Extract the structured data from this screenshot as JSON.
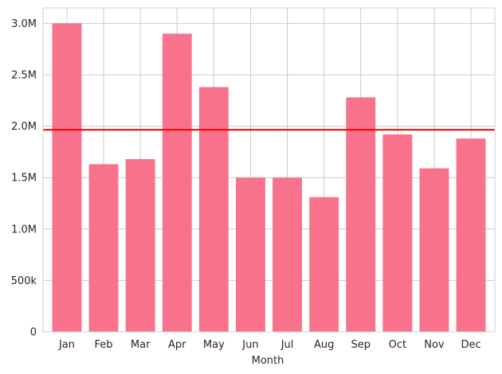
{
  "chart_data": {
    "type": "bar",
    "title": "",
    "xlabel": "Month",
    "ylabel": "",
    "categories": [
      "Jan",
      "Feb",
      "Mar",
      "Apr",
      "May",
      "Jun",
      "Jul",
      "Aug",
      "Sep",
      "Oct",
      "Nov",
      "Dec"
    ],
    "values": [
      3000000,
      1630000,
      1680000,
      2900000,
      2380000,
      1500000,
      1500000,
      1310000,
      2280000,
      1920000,
      1590000,
      1880000
    ],
    "ylim": [
      0,
      3150000
    ],
    "yticks": [
      0,
      500000,
      1000000,
      1500000,
      2000000,
      2500000,
      3000000
    ],
    "ytick_labels": [
      "0",
      "500k",
      "1.0M",
      "1.5M",
      "2.0M",
      "2.5M",
      "3.0M"
    ],
    "reference_line": {
      "y": 1965000,
      "color": "#ff0000"
    },
    "bar_color": "#f7728a",
    "grid": true,
    "legend": "none"
  }
}
